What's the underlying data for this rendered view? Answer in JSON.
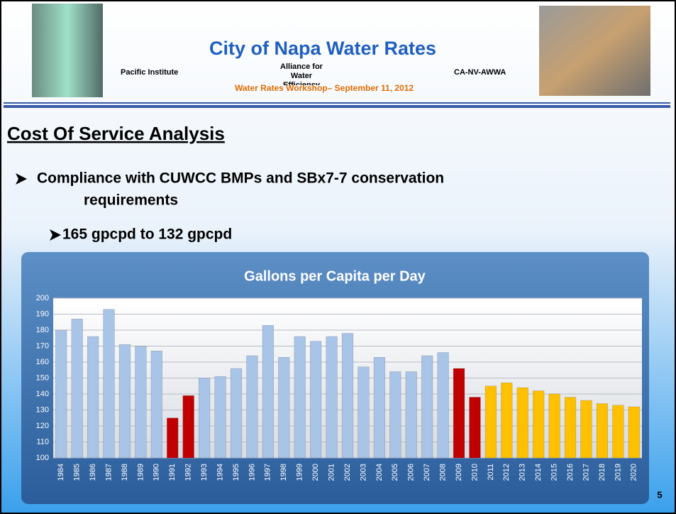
{
  "header": {
    "title": "City of Napa Water Rates",
    "orgs": [
      "Pacific Institute",
      "Alliance for Water Efficiency",
      "CA-NV-AWWA"
    ],
    "workshop": "Water Rates Workshop– September 11, 2012"
  },
  "heading": "Cost Of Service Analysis",
  "bullets": [
    "Compliance with CUWCC BMPs and  SBx7-7 conservation",
    "requirements"
  ],
  "sub_bullet": "165 gpcpd to 132 gpcpd",
  "page_number": "5",
  "chart_data": {
    "type": "bar",
    "title": "Gallons per Capita per Day",
    "categories": [
      "1984",
      "1985",
      "1986",
      "1987",
      "1988",
      "1989",
      "1990",
      "1991",
      "1992",
      "1993",
      "1994",
      "1995",
      "1996",
      "1997",
      "1998",
      "1999",
      "2000",
      "2001",
      "2002",
      "2003",
      "2004",
      "2005",
      "2006",
      "2007",
      "2008",
      "2009",
      "2010",
      "2011",
      "2012",
      "2013",
      "2014",
      "2015",
      "2016",
      "2017",
      "2018",
      "2019",
      "2020"
    ],
    "values": [
      180,
      187,
      176,
      193,
      171,
      170,
      167,
      125,
      139,
      150,
      151,
      156,
      164,
      183,
      163,
      176,
      173,
      176,
      178,
      157,
      163,
      154,
      154,
      164,
      166,
      156,
      138,
      145,
      147,
      144,
      142,
      140,
      138,
      136,
      134,
      133,
      132
    ],
    "colors": [
      "#a8c4e6",
      "#a8c4e6",
      "#a8c4e6",
      "#a8c4e6",
      "#a8c4e6",
      "#a8c4e6",
      "#a8c4e6",
      "#c00000",
      "#c00000",
      "#a8c4e6",
      "#a8c4e6",
      "#a8c4e6",
      "#a8c4e6",
      "#a8c4e6",
      "#a8c4e6",
      "#a8c4e6",
      "#a8c4e6",
      "#a8c4e6",
      "#a8c4e6",
      "#a8c4e6",
      "#a8c4e6",
      "#a8c4e6",
      "#a8c4e6",
      "#a8c4e6",
      "#a8c4e6",
      "#c00000",
      "#c00000",
      "#ffc000",
      "#ffc000",
      "#ffc000",
      "#ffc000",
      "#ffc000",
      "#ffc000",
      "#ffc000",
      "#ffc000",
      "#ffc000",
      "#ffc000"
    ],
    "ylim": [
      100,
      200
    ],
    "yticks": [
      100,
      110,
      120,
      130,
      140,
      150,
      160,
      170,
      180,
      190,
      200
    ],
    "grid": true
  }
}
